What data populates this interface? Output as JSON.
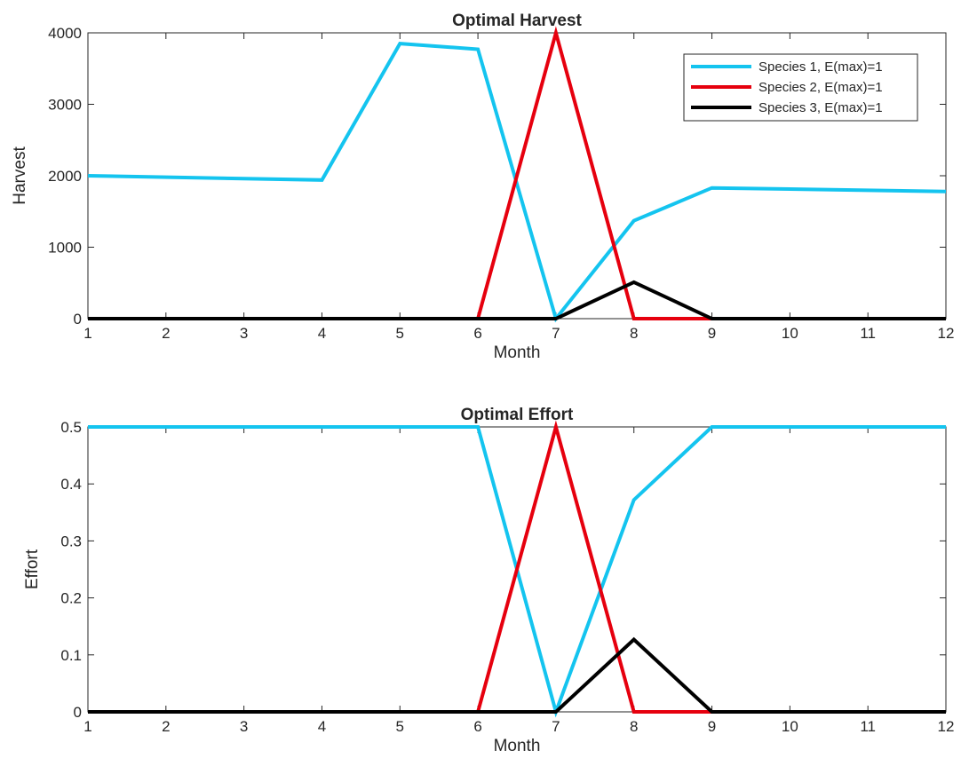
{
  "chart_data": [
    {
      "type": "line",
      "title": "Optimal Harvest",
      "xlabel": "Month",
      "ylabel": "Harvest",
      "xlim": [
        1,
        12
      ],
      "ylim": [
        0,
        4000
      ],
      "xticks": [
        1,
        2,
        3,
        4,
        5,
        6,
        7,
        8,
        9,
        10,
        11,
        12
      ],
      "yticks": [
        0,
        1000,
        2000,
        3000,
        4000
      ],
      "grid": false,
      "legend_position": "top-right",
      "series": [
        {
          "name": "Species 1, E(max)=1",
          "color": "#14c4ef",
          "x": [
            1,
            4,
            5,
            6,
            7,
            8,
            9,
            12
          ],
          "y": [
            2000,
            1940,
            3850,
            3770,
            0,
            1370,
            1830,
            1780
          ]
        },
        {
          "name": "Species 2, E(max)=1",
          "color": "#e6000e",
          "x": [
            1,
            6,
            7,
            8,
            12
          ],
          "y": [
            0,
            0,
            4000,
            0,
            0
          ]
        },
        {
          "name": "Species 3, E(max)=1",
          "color": "#000000",
          "x": [
            1,
            7,
            8,
            9,
            12
          ],
          "y": [
            0,
            0,
            510,
            0,
            0
          ]
        }
      ]
    },
    {
      "type": "line",
      "title": "Optimal Effort",
      "xlabel": "Month",
      "ylabel": "Effort",
      "xlim": [
        1,
        12
      ],
      "ylim": [
        0,
        0.5
      ],
      "xticks": [
        1,
        2,
        3,
        4,
        5,
        6,
        7,
        8,
        9,
        10,
        11,
        12
      ],
      "yticks": [
        0,
        0.1,
        0.2,
        0.3,
        0.4,
        0.5
      ],
      "grid": false,
      "series": [
        {
          "color": "#14c4ef",
          "x": [
            1,
            6,
            7,
            8,
            9,
            12
          ],
          "y": [
            0.5,
            0.5,
            0,
            0.372,
            0.5,
            0.5
          ]
        },
        {
          "color": "#e6000e",
          "x": [
            1,
            6,
            7,
            8,
            12
          ],
          "y": [
            0,
            0,
            0.5,
            0,
            0
          ]
        },
        {
          "color": "#000000",
          "x": [
            1,
            7,
            8,
            9,
            12
          ],
          "y": [
            0,
            0,
            0.127,
            0,
            0
          ]
        }
      ]
    }
  ]
}
